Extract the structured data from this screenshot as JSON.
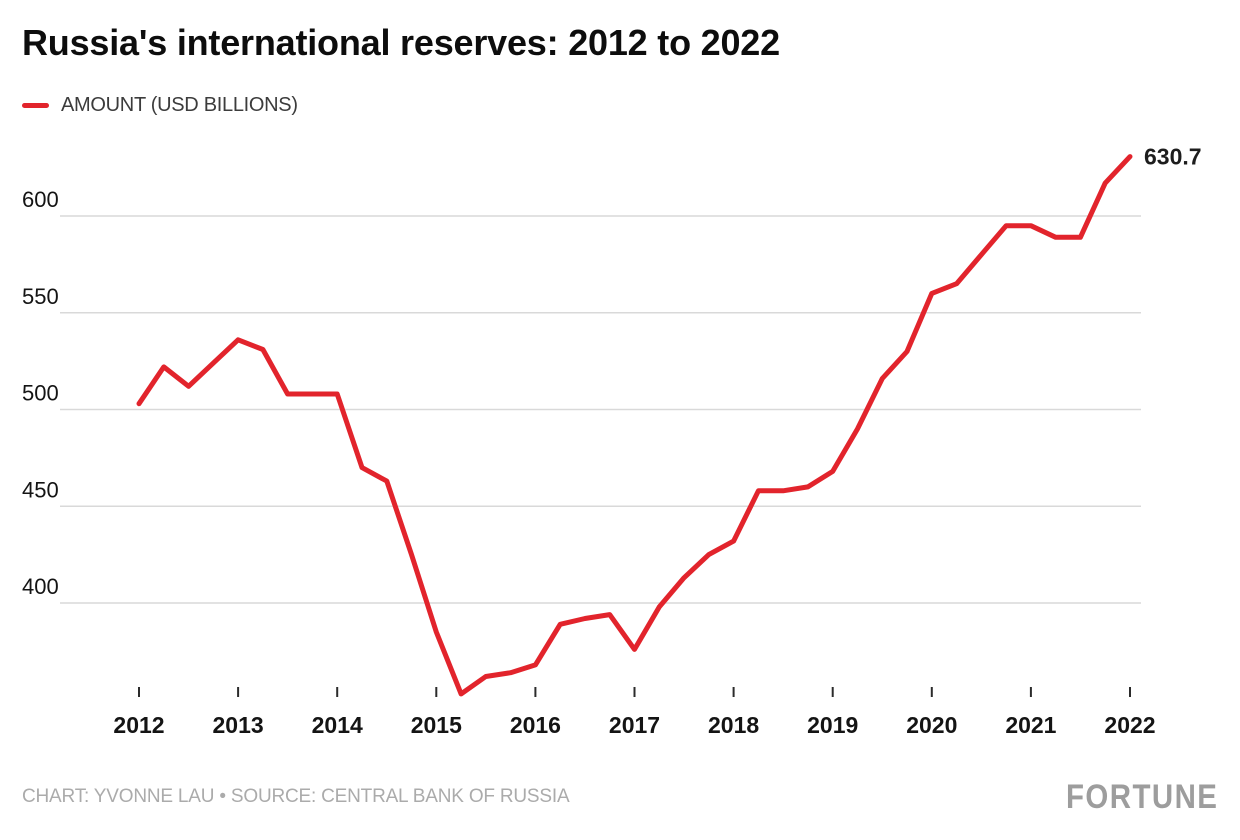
{
  "header": {
    "title": "Russia's international reserves: 2012 to 2022"
  },
  "legend": {
    "label": "AMOUNT (USD BILLIONS)",
    "color": "#e2242c"
  },
  "chart_data": {
    "type": "line",
    "title": "Russia's international reserves: 2012 to 2022",
    "xlabel": "",
    "ylabel": "AMOUNT (USD BILLIONS)",
    "grid": "horizontal-only",
    "legend_position": "top-left",
    "x_ticks": [
      2012,
      2013,
      2014,
      2015,
      2016,
      2017,
      2018,
      2019,
      2020,
      2021,
      2022
    ],
    "y_ticks": [
      400,
      450,
      500,
      550,
      600
    ],
    "xlim": [
      2012,
      2022
    ],
    "ylim": [
      345,
      640
    ],
    "end_label": "630.7",
    "series": [
      {
        "name": "AMOUNT (USD BILLIONS)",
        "color": "#e2242c",
        "x": [
          2012.0,
          2012.25,
          2012.5,
          2012.75,
          2013.0,
          2013.25,
          2013.5,
          2013.75,
          2014.0,
          2014.25,
          2014.5,
          2014.75,
          2015.0,
          2015.25,
          2015.5,
          2015.75,
          2016.0,
          2016.25,
          2016.5,
          2016.75,
          2017.0,
          2017.25,
          2017.5,
          2017.75,
          2018.0,
          2018.25,
          2018.5,
          2018.75,
          2019.0,
          2019.25,
          2019.5,
          2019.75,
          2020.0,
          2020.25,
          2020.5,
          2020.75,
          2021.0,
          2021.25,
          2021.5,
          2021.75,
          2022.0
        ],
        "values": [
          503,
          522,
          512,
          524,
          536,
          531,
          508,
          508,
          508,
          470,
          463,
          425,
          385,
          353,
          362,
          364,
          368,
          389,
          392,
          394,
          376,
          398,
          413,
          425,
          432,
          458,
          458,
          460,
          468,
          490,
          516,
          530,
          560,
          565,
          580,
          595,
          595,
          589,
          589,
          617,
          630.7
        ]
      }
    ]
  },
  "footer": {
    "credit": "CHART: YVONNE LAU • SOURCE: CENTRAL BANK OF RUSSIA",
    "logo": "FORTUNE"
  }
}
